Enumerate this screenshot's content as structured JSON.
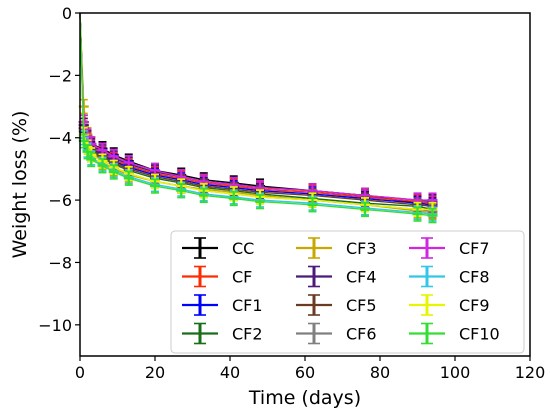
{
  "chart_data": {
    "type": "line",
    "title": "",
    "xlabel": "Time (days)",
    "ylabel": "Weight loss (%)",
    "xlim": [
      0,
      120
    ],
    "ylim": [
      -11,
      0
    ],
    "xticks": [
      0,
      20,
      40,
      60,
      80,
      100,
      120
    ],
    "yticks": [
      0,
      -2,
      -4,
      -6,
      -8,
      -10
    ],
    "x_tick_labels": [
      "0",
      "20",
      "40",
      "60",
      "80",
      "100",
      "120"
    ],
    "y_tick_labels": [
      "0",
      "−2",
      "−4",
      "−6",
      "−8",
      "−10"
    ],
    "grid": false,
    "legend_position": "lower-right",
    "x": [
      0,
      1,
      2,
      3,
      6,
      9,
      13,
      20,
      27,
      33,
      41,
      48,
      62,
      76,
      90,
      94
    ],
    "series": [
      {
        "name": "CC",
        "color": "#000000",
        "values": [
          0,
          -3.5,
          -4.0,
          -4.2,
          -4.35,
          -4.55,
          -4.75,
          -5.05,
          -5.2,
          -5.35,
          -5.45,
          -5.55,
          -5.7,
          -5.85,
          -6.1,
          -6.15
        ]
      },
      {
        "name": "CF",
        "color": "#ff2a00",
        "values": [
          0,
          -3.6,
          -4.05,
          -4.3,
          -4.5,
          -4.7,
          -4.9,
          -5.15,
          -5.3,
          -5.45,
          -5.55,
          -5.65,
          -5.75,
          -5.9,
          -6.05,
          -6.1
        ]
      },
      {
        "name": "CF1",
        "color": "#0000ff",
        "values": [
          0,
          -3.7,
          -4.1,
          -4.35,
          -4.55,
          -4.75,
          -4.95,
          -5.2,
          -5.35,
          -5.5,
          -5.6,
          -5.7,
          -5.8,
          -5.95,
          -6.1,
          -6.15
        ]
      },
      {
        "name": "CF2",
        "color": "#1a6e1a",
        "values": [
          0,
          -3.8,
          -4.2,
          -4.45,
          -4.65,
          -4.85,
          -5.05,
          -5.3,
          -5.45,
          -5.6,
          -5.7,
          -5.8,
          -5.95,
          -6.1,
          -6.2,
          -6.3
        ]
      },
      {
        "name": "CF3",
        "color": "#c8a800",
        "values": [
          0,
          -3.0,
          -3.9,
          -4.4,
          -4.8,
          -5.0,
          -5.2,
          -5.4,
          -5.55,
          -5.65,
          -5.75,
          -5.85,
          -6.0,
          -6.15,
          -6.35,
          -6.4
        ]
      },
      {
        "name": "CF4",
        "color": "#4b1a7a",
        "values": [
          0,
          -3.6,
          -4.0,
          -4.25,
          -4.45,
          -4.65,
          -4.85,
          -5.1,
          -5.25,
          -5.4,
          -5.5,
          -5.6,
          -5.7,
          -5.85,
          -6.0,
          -6.05
        ]
      },
      {
        "name": "CF5",
        "color": "#6b3a22",
        "values": [
          0,
          -3.7,
          -4.15,
          -4.4,
          -4.6,
          -4.8,
          -5.0,
          -5.25,
          -5.4,
          -5.55,
          -5.65,
          -5.75,
          -5.85,
          -6.0,
          -6.15,
          -6.2
        ]
      },
      {
        "name": "CF6",
        "color": "#808080",
        "values": [
          0,
          -3.9,
          -4.3,
          -4.55,
          -4.75,
          -4.95,
          -5.15,
          -5.4,
          -5.55,
          -5.7,
          -5.8,
          -5.9,
          -6.0,
          -6.15,
          -6.3,
          -6.35
        ]
      },
      {
        "name": "CF7",
        "color": "#d026e0",
        "values": [
          0,
          -3.5,
          -3.95,
          -4.2,
          -4.4,
          -4.6,
          -4.8,
          -5.05,
          -5.25,
          -5.4,
          -5.5,
          -5.6,
          -5.7,
          -5.85,
          -6.0,
          -6.0
        ]
      },
      {
        "name": "CF8",
        "color": "#33c6e8",
        "values": [
          0,
          -4.0,
          -4.4,
          -4.65,
          -4.85,
          -5.05,
          -5.25,
          -5.5,
          -5.65,
          -5.8,
          -5.9,
          -6.0,
          -6.1,
          -6.25,
          -6.4,
          -6.45
        ]
      },
      {
        "name": "CF9",
        "color": "#e8f500",
        "values": [
          0,
          -3.9,
          -4.3,
          -4.55,
          -4.75,
          -4.95,
          -5.15,
          -5.4,
          -5.55,
          -5.7,
          -5.8,
          -5.9,
          -6.0,
          -6.15,
          -6.3,
          -6.3
        ]
      },
      {
        "name": "CF10",
        "color": "#33dd33",
        "values": [
          0,
          -4.1,
          -4.45,
          -4.7,
          -4.9,
          -5.1,
          -5.3,
          -5.55,
          -5.7,
          -5.85,
          -5.95,
          -6.05,
          -6.15,
          -6.3,
          -6.45,
          -6.5
        ]
      }
    ]
  }
}
